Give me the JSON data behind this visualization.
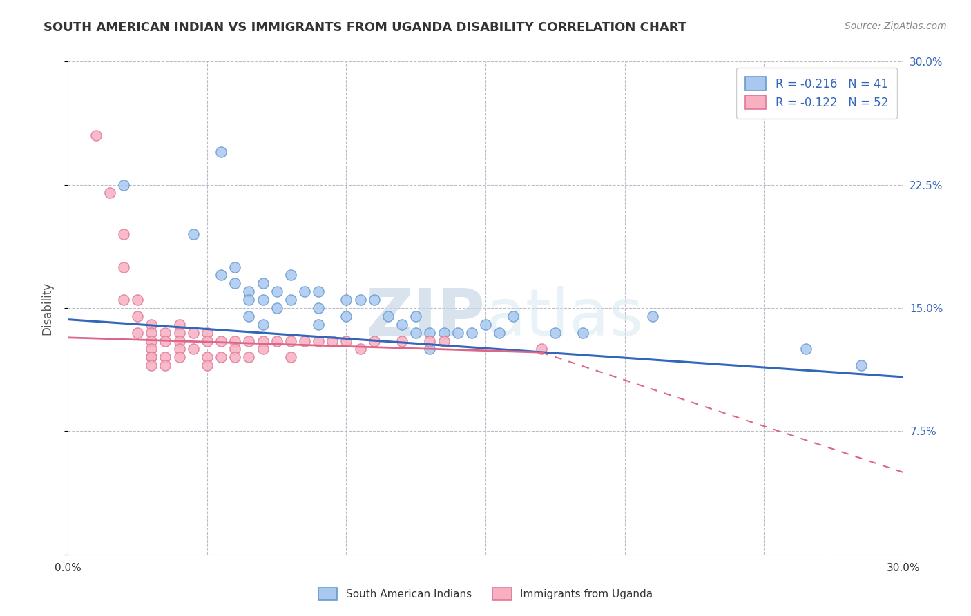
{
  "title": "SOUTH AMERICAN INDIAN VS IMMIGRANTS FROM UGANDA DISABILITY CORRELATION CHART",
  "source": "Source: ZipAtlas.com",
  "ylabel": "Disability",
  "xlim": [
    0.0,
    0.3
  ],
  "ylim": [
    0.0,
    0.3
  ],
  "xticks": [
    0.0,
    0.05,
    0.1,
    0.15,
    0.2,
    0.25,
    0.3
  ],
  "yticks_right": [
    0.0,
    0.075,
    0.15,
    0.225,
    0.3
  ],
  "blue_label": "South American Indians",
  "pink_label": "Immigrants from Uganda",
  "blue_R": -0.216,
  "blue_N": 41,
  "pink_R": -0.122,
  "pink_N": 52,
  "blue_face": "#A8C8F0",
  "blue_edge": "#6699CC",
  "pink_face": "#F8B0C0",
  "pink_edge": "#DD7799",
  "trend_blue": "#3366BB",
  "trend_pink": "#DD6688",
  "watermark_zip": "ZIP",
  "watermark_atlas": "atlas",
  "blue_points_x": [
    0.02,
    0.045,
    0.055,
    0.055,
    0.06,
    0.06,
    0.065,
    0.065,
    0.065,
    0.07,
    0.07,
    0.07,
    0.075,
    0.075,
    0.08,
    0.08,
    0.085,
    0.09,
    0.09,
    0.09,
    0.1,
    0.1,
    0.105,
    0.11,
    0.115,
    0.12,
    0.125,
    0.125,
    0.13,
    0.13,
    0.135,
    0.14,
    0.145,
    0.15,
    0.155,
    0.16,
    0.175,
    0.185,
    0.21,
    0.265,
    0.285
  ],
  "blue_points_y": [
    0.225,
    0.195,
    0.245,
    0.17,
    0.175,
    0.165,
    0.16,
    0.155,
    0.145,
    0.165,
    0.155,
    0.14,
    0.16,
    0.15,
    0.17,
    0.155,
    0.16,
    0.16,
    0.15,
    0.14,
    0.155,
    0.145,
    0.155,
    0.155,
    0.145,
    0.14,
    0.145,
    0.135,
    0.135,
    0.125,
    0.135,
    0.135,
    0.135,
    0.14,
    0.135,
    0.145,
    0.135,
    0.135,
    0.145,
    0.125,
    0.115
  ],
  "pink_points_x": [
    0.01,
    0.015,
    0.02,
    0.02,
    0.02,
    0.025,
    0.025,
    0.025,
    0.03,
    0.03,
    0.03,
    0.03,
    0.03,
    0.03,
    0.03,
    0.035,
    0.035,
    0.035,
    0.035,
    0.04,
    0.04,
    0.04,
    0.04,
    0.04,
    0.045,
    0.045,
    0.05,
    0.05,
    0.05,
    0.05,
    0.055,
    0.055,
    0.06,
    0.06,
    0.06,
    0.065,
    0.065,
    0.07,
    0.07,
    0.075,
    0.08,
    0.08,
    0.085,
    0.09,
    0.095,
    0.1,
    0.105,
    0.11,
    0.12,
    0.13,
    0.135,
    0.17
  ],
  "pink_points_y": [
    0.255,
    0.22,
    0.195,
    0.175,
    0.155,
    0.155,
    0.145,
    0.135,
    0.14,
    0.135,
    0.13,
    0.125,
    0.12,
    0.12,
    0.115,
    0.135,
    0.13,
    0.12,
    0.115,
    0.14,
    0.135,
    0.13,
    0.125,
    0.12,
    0.135,
    0.125,
    0.135,
    0.13,
    0.12,
    0.115,
    0.13,
    0.12,
    0.13,
    0.125,
    0.12,
    0.13,
    0.12,
    0.13,
    0.125,
    0.13,
    0.13,
    0.12,
    0.13,
    0.13,
    0.13,
    0.13,
    0.125,
    0.13,
    0.13,
    0.13,
    0.13,
    0.125
  ],
  "background_color": "#FFFFFF",
  "grid_color": "#BBBBCC"
}
